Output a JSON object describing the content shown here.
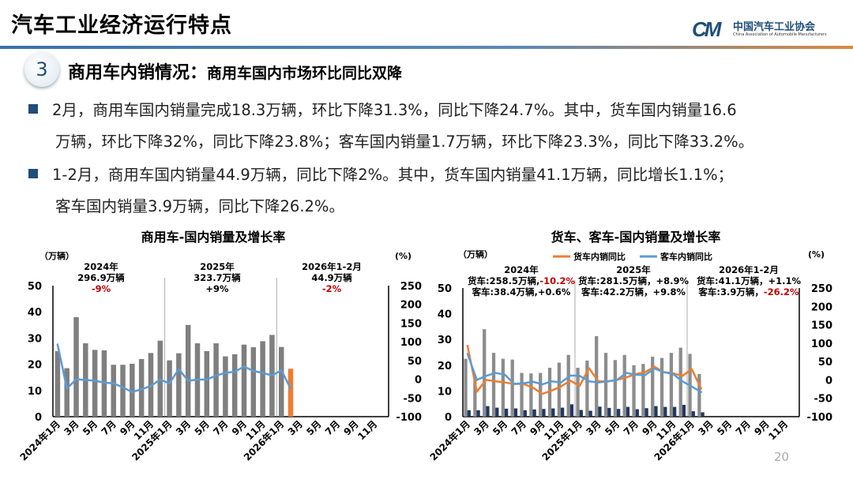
{
  "header": {
    "title": "汽车工业经济运行特点",
    "logo_cn": "中国汽车工业协会",
    "logo_en": "China Association of Automobile Manufacturers",
    "logo_mark": "CM"
  },
  "section": {
    "number": "3",
    "title": "商用车内销情况：",
    "subtitle": "商用车国内市场环比同比双降"
  },
  "bullets": [
    {
      "lines": [
        "2月，商用车国内销量完成18.3万辆，环比下降31.3%，同比下降24.7%。其中，货车国内销量16.6",
        "万辆，环比下降32%，同比下降23.8%；客车国内销量1.7万辆，环比下降23.3%，同比下降33.2%。"
      ]
    },
    {
      "lines": [
        "1-2月，商用车国内销量44.9万辆，同比下降2%。其中，货车国内销量41.1万辆，同比增长1.1%；",
        "客车国内销量3.9万辆，同比下降26.2%。"
      ]
    }
  ],
  "page_number": "20",
  "chart_data": [
    {
      "type": "bar+line",
      "title": "商用车-国内销量及增长率",
      "ylabel_left": "（万辆）",
      "ylabel_right": "(%)",
      "ylim_left": [
        0,
        50
      ],
      "yticks_left": [
        "0",
        "10",
        "20",
        "30",
        "40",
        "50"
      ],
      "ylim_right": [
        -100,
        250
      ],
      "yticks_right": [
        "-100",
        "-50",
        "0",
        "50",
        "100",
        "150",
        "200",
        "250"
      ],
      "x_tick_labels": [
        "2024年1月",
        "3月",
        "5月",
        "7月",
        "9月",
        "11月",
        "2025年1月",
        "3月",
        "5月",
        "7月",
        "9月",
        "11月",
        "2026年1月",
        "3月",
        "5月",
        "7月",
        "9月",
        "11月"
      ],
      "bar_series": [
        {
          "values": [
            25,
            18.5,
            38,
            28,
            25.5,
            25.3,
            19.8,
            19.8,
            20.2,
            22,
            24.3,
            29,
            21.5,
            24.2,
            35,
            28,
            25,
            28,
            23,
            23.8,
            27.5,
            26.5,
            28.8,
            31.2,
            26.6,
            18.3
          ],
          "color": "#7f7f7f",
          "highlight_last_color": "#ed7d31"
        }
      ],
      "line_series": [
        {
          "values": [
            93,
            -25,
            0,
            -2,
            -4,
            -9,
            -11,
            -22,
            -34,
            -27,
            -18,
            -1,
            -11,
            27,
            -4,
            -1,
            -1,
            10,
            17,
            20,
            34,
            22,
            17,
            10,
            24,
            -25
          ],
          "color": "#5b9bd5"
        }
      ],
      "annotations": [
        [
          [
            {
              "t": "2024年"
            }
          ],
          [
            {
              "t": "296.9万辆"
            }
          ],
          [
            {
              "t": "-9%",
              "c": "#c00000"
            }
          ]
        ],
        [
          [
            {
              "t": "2025年"
            }
          ],
          [
            {
              "t": "323.7万辆"
            }
          ],
          [
            {
              "t": "+9%"
            }
          ]
        ],
        [
          [
            {
              "t": "2026年1-2月"
            }
          ],
          [
            {
              "t": "44.9万辆"
            }
          ],
          [
            {
              "t": "-2%",
              "c": "#c00000"
            }
          ]
        ]
      ],
      "legend": []
    },
    {
      "type": "bar+line",
      "title": "货车、客车-国内销量及增长率",
      "ylabel_left": "（万辆）",
      "ylabel_right": "(%)",
      "ylim_left": [
        0,
        50
      ],
      "yticks_left": [
        "0",
        "10",
        "20",
        "30",
        "40",
        "50"
      ],
      "ylim_right": [
        -100,
        250
      ],
      "yticks_right": [
        "-100",
        "-50",
        "0",
        "50",
        "100",
        "150",
        "200",
        "250"
      ],
      "x_tick_labels": [
        "2024年1月",
        "3月",
        "5月",
        "7月",
        "9月",
        "11月",
        "2025年1月",
        "3月",
        "5月",
        "7月",
        "9月",
        "11月",
        "2026年1月",
        "3月",
        "5月",
        "7月",
        "9月",
        "11月"
      ],
      "bar_series": [
        {
          "values": [
            22.5,
            15,
            34,
            24.8,
            22.5,
            22.2,
            17,
            16.8,
            17,
            19,
            21,
            24,
            19,
            21.8,
            31.3,
            24.8,
            22,
            24,
            20,
            20.5,
            23.3,
            22.8,
            24.8,
            26.8,
            24.4,
            16.6
          ],
          "color": "#8c8c8c"
        },
        {
          "values": [
            2.5,
            2.5,
            4.1,
            3.5,
            3.1,
            3.2,
            2.5,
            2.8,
            3,
            3.2,
            3.5,
            4.8,
            2.6,
            2.3,
            3.9,
            3.4,
            3,
            3.8,
            2.9,
            3.3,
            4.1,
            3.8,
            3.8,
            4.6,
            2.1,
            1.7
          ],
          "color": "#203864"
        }
      ],
      "line_series": [
        {
          "name": "货车内销同比",
          "values": [
            93,
            -32,
            0,
            -4,
            -7,
            -11,
            -11,
            -21,
            -38,
            -29,
            -18,
            -2,
            -16,
            32,
            -4,
            -4,
            0,
            7,
            16,
            21,
            36,
            21,
            18,
            11,
            29,
            -24
          ],
          "color": "#ed7d31"
        },
        {
          "name": "客车内销同比",
          "values": [
            71,
            0,
            11,
            19,
            14,
            -11,
            -9,
            -5,
            -12,
            -4,
            -7,
            12,
            11,
            -4,
            -7,
            -4,
            0,
            19,
            14,
            13,
            31,
            21,
            16,
            -4,
            -18,
            -33
          ],
          "color": "#5b9bd5"
        }
      ],
      "annotations": [
        [
          [
            {
              "t": "2024年"
            }
          ],
          [
            {
              "t": "货车:258.5万辆,"
            },
            {
              "t": "-10.2%",
              "c": "#c00000"
            }
          ],
          [
            {
              "t": "客车:38.4万辆,+0.6%"
            }
          ]
        ],
        [
          [
            {
              "t": "2025年"
            }
          ],
          [
            {
              "t": "货车:281.5万辆，+8.9%"
            }
          ],
          [
            {
              "t": "客车:42.2万辆，+9.8%"
            }
          ]
        ],
        [
          [
            {
              "t": "2026年1-2月"
            }
          ],
          [
            {
              "t": "货车:41.1万辆，+1.1%"
            }
          ],
          [
            {
              "t": "客车:3.9万辆，"
            },
            {
              "t": "-26.2%",
              "c": "#c00000"
            }
          ]
        ]
      ],
      "legend": [
        "货车内销同比",
        "客车内销同比"
      ]
    }
  ]
}
